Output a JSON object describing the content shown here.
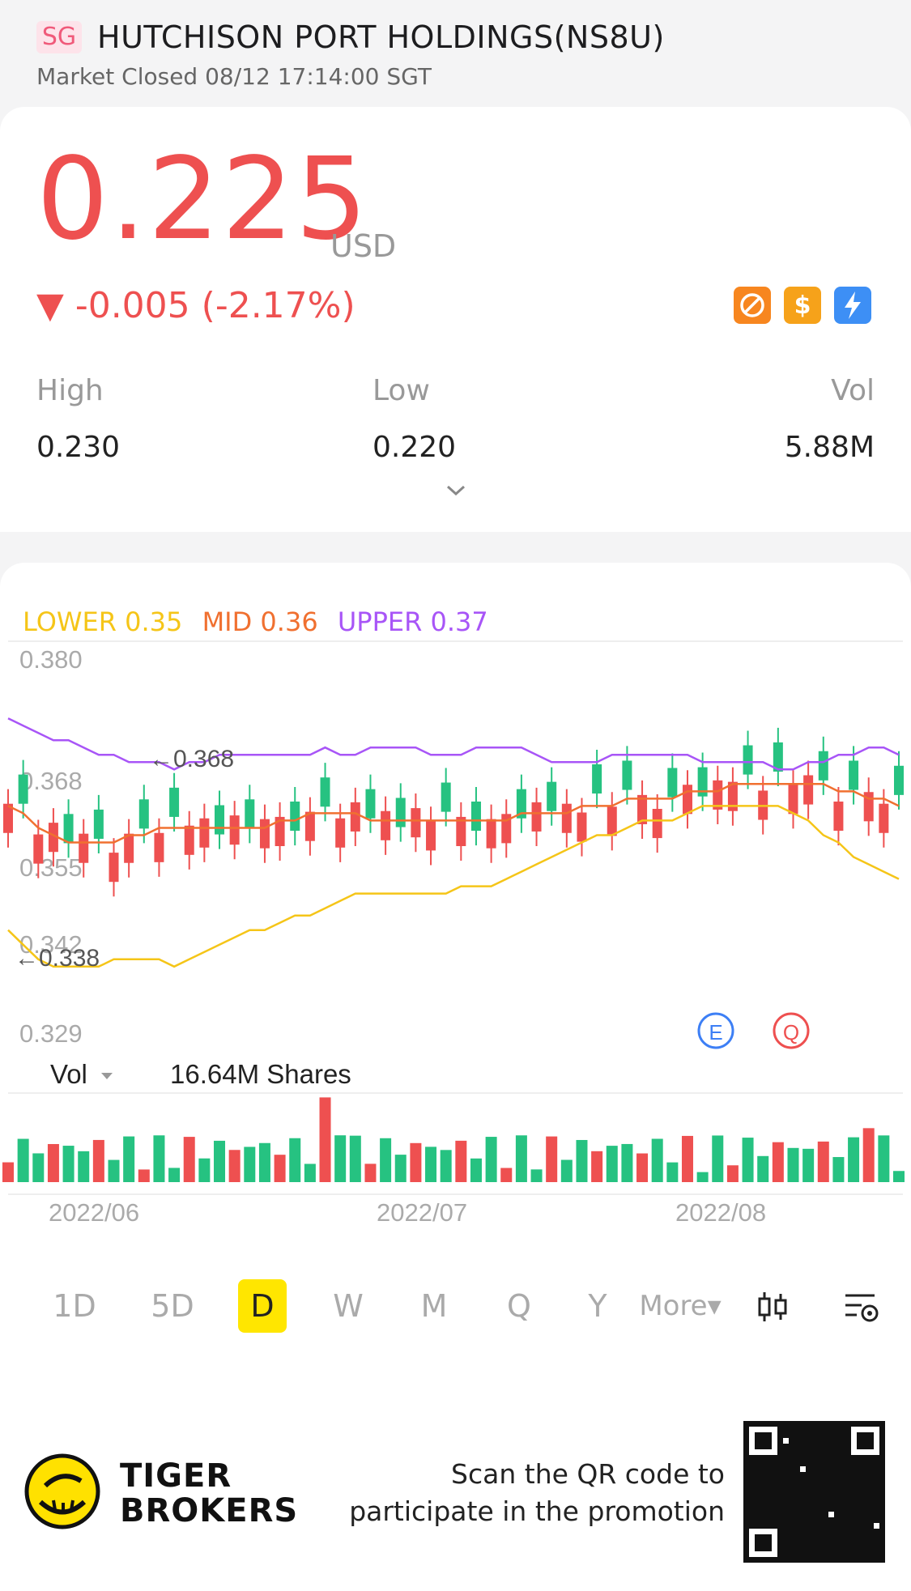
{
  "header": {
    "market": "SG",
    "title": "HUTCHISON PORT HOLDINGS(NS8U)",
    "status": "Market Closed 08/12 17:14:00 SGT"
  },
  "quote": {
    "price": "0.225",
    "currency": "USD",
    "change": "▼ -0.005 (-2.17%)",
    "price_color": "#ee5050",
    "badges": [
      "no-short-icon",
      "dollar-icon",
      "lightning-icon"
    ],
    "stats": [
      {
        "label": "High",
        "value": "0.230"
      },
      {
        "label": "Low",
        "value": "0.220"
      },
      {
        "label": "Vol",
        "value": "5.88M"
      }
    ]
  },
  "chart": {
    "legend": {
      "lower": "LOWER 0.35",
      "mid": "MID 0.36",
      "upper": "UPPER 0.37"
    },
    "y_ticks": [
      "0.380",
      "0.368",
      "0.355",
      "0.342",
      "0.329"
    ],
    "max_marker": "0.368",
    "min_marker": "0.338",
    "event_icons": [
      "E",
      "Q"
    ],
    "volume_label": "Vol",
    "volume_value": "16.64M Shares",
    "x_ticks": [
      "2022/06",
      "2022/07",
      "2022/08"
    ],
    "colors": {
      "up": "#26c281",
      "down": "#ee5050",
      "lower": "#f5c518",
      "mid": "#f07030",
      "upper": "#a855f7"
    }
  },
  "chart_data": {
    "type": "candlestick",
    "ylim": [
      0.329,
      0.38
    ],
    "upper": [
      0.372,
      0.371,
      0.37,
      0.369,
      0.369,
      0.368,
      0.367,
      0.367,
      0.366,
      0.366,
      0.366,
      0.365,
      0.366,
      0.366,
      0.367,
      0.367,
      0.367,
      0.367,
      0.367,
      0.367,
      0.367,
      0.368,
      0.367,
      0.367,
      0.368,
      0.368,
      0.368,
      0.368,
      0.367,
      0.367,
      0.367,
      0.368,
      0.368,
      0.368,
      0.368,
      0.367,
      0.366,
      0.366,
      0.366,
      0.366,
      0.367,
      0.367,
      0.367,
      0.367,
      0.367,
      0.367,
      0.366,
      0.366,
      0.366,
      0.366,
      0.366,
      0.365,
      0.365,
      0.366,
      0.366,
      0.367,
      0.367,
      0.368,
      0.368,
      0.367
    ],
    "mid": [
      0.36,
      0.359,
      0.357,
      0.356,
      0.355,
      0.355,
      0.355,
      0.355,
      0.356,
      0.356,
      0.357,
      0.357,
      0.357,
      0.357,
      0.357,
      0.357,
      0.357,
      0.357,
      0.358,
      0.358,
      0.359,
      0.359,
      0.359,
      0.359,
      0.358,
      0.358,
      0.358,
      0.358,
      0.358,
      0.358,
      0.358,
      0.358,
      0.358,
      0.358,
      0.359,
      0.359,
      0.359,
      0.359,
      0.36,
      0.36,
      0.36,
      0.361,
      0.361,
      0.361,
      0.361,
      0.362,
      0.362,
      0.362,
      0.363,
      0.363,
      0.363,
      0.363,
      0.363,
      0.363,
      0.363,
      0.362,
      0.362,
      0.361,
      0.361,
      0.36
    ],
    "lower": [
      0.343,
      0.341,
      0.339,
      0.338,
      0.338,
      0.338,
      0.338,
      0.339,
      0.339,
      0.339,
      0.339,
      0.338,
      0.339,
      0.34,
      0.341,
      0.342,
      0.343,
      0.343,
      0.344,
      0.345,
      0.345,
      0.346,
      0.347,
      0.348,
      0.348,
      0.348,
      0.348,
      0.348,
      0.348,
      0.348,
      0.349,
      0.349,
      0.349,
      0.35,
      0.351,
      0.352,
      0.353,
      0.354,
      0.355,
      0.356,
      0.356,
      0.357,
      0.358,
      0.358,
      0.358,
      0.359,
      0.36,
      0.36,
      0.36,
      0.36,
      0.36,
      0.36,
      0.359,
      0.358,
      0.356,
      0.355,
      0.353,
      0.352,
      0.351,
      0.35
    ],
    "volume_max": 16.64
  },
  "periods": [
    "1D",
    "5D",
    "D",
    "W",
    "M",
    "Q",
    "Y",
    "More▾"
  ],
  "active_period": "D",
  "promo": {
    "brand_top": "TIGER",
    "brand_bottom": "BROKERS",
    "line1": "Scan the QR code to",
    "line2": "participate in the promotion"
  }
}
